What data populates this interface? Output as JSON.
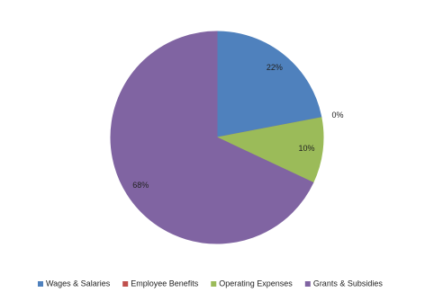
{
  "chart_data": {
    "type": "pie",
    "categories": [
      "Wages & Salaries",
      "Employee Benefits",
      "Operating Expenses",
      "Grants & Subsidies"
    ],
    "values": [
      22,
      0,
      10,
      68
    ],
    "value_labels": [
      "22%",
      "0%",
      "10%",
      "68%"
    ],
    "colors": [
      "#4f81bd",
      "#c0504d",
      "#9bbb59",
      "#8064a2"
    ],
    "legend": "bottom"
  }
}
